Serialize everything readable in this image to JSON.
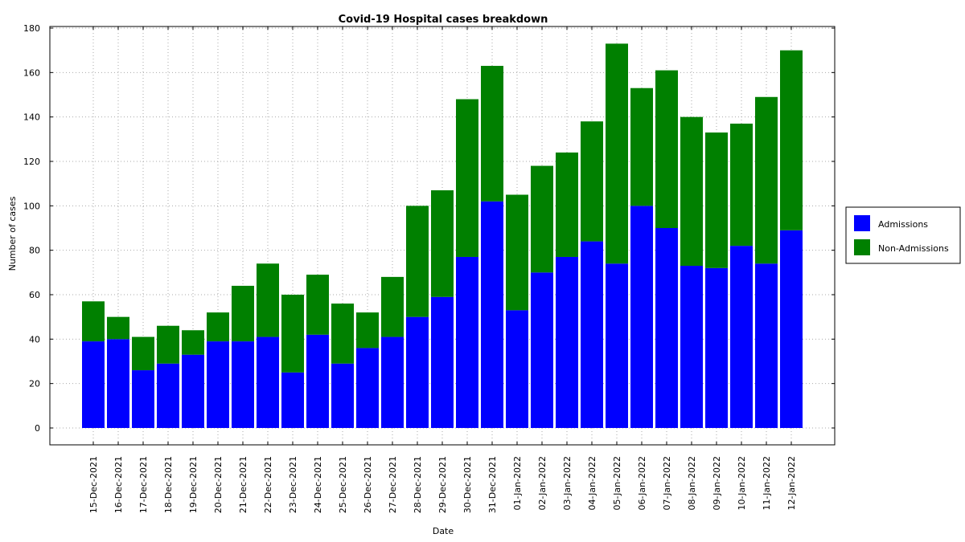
{
  "chart_data": {
    "type": "bar",
    "stacked": true,
    "title": "Covid-19 Hospital cases breakdown",
    "xlabel": "Date",
    "ylabel": "Number of cases",
    "ylim": [
      0,
      180
    ],
    "yticks": [
      0,
      20,
      40,
      60,
      80,
      100,
      120,
      140,
      160,
      180
    ],
    "grid": true,
    "legend_position": "right",
    "categories": [
      "15-Dec-2021",
      "16-Dec-2021",
      "17-Dec-2021",
      "18-Dec-2021",
      "19-Dec-2021",
      "20-Dec-2021",
      "21-Dec-2021",
      "22-Dec-2021",
      "23-Dec-2021",
      "24-Dec-2021",
      "25-Dec-2021",
      "26-Dec-2021",
      "27-Dec-2021",
      "28-Dec-2021",
      "29-Dec-2021",
      "30-Dec-2021",
      "31-Dec-2021",
      "01-Jan-2022",
      "02-Jan-2022",
      "03-Jan-2022",
      "04-Jan-2022",
      "05-Jan-2022",
      "06-Jan-2022",
      "07-Jan-2022",
      "08-Jan-2022",
      "09-Jan-2022",
      "10-Jan-2022",
      "11-Jan-2022",
      "12-Jan-2022"
    ],
    "series": [
      {
        "name": "Admissions",
        "color": "#0000ff",
        "values": [
          39,
          40,
          26,
          29,
          33,
          39,
          39,
          41,
          25,
          42,
          29,
          36,
          41,
          50,
          59,
          77,
          102,
          53,
          70,
          77,
          84,
          74,
          100,
          90,
          73,
          72,
          82,
          74,
          89
        ]
      },
      {
        "name": "Non-Admissions",
        "color": "#008000",
        "values": [
          18,
          10,
          15,
          17,
          11,
          13,
          25,
          33,
          35,
          27,
          27,
          16,
          27,
          50,
          48,
          71,
          61,
          52,
          48,
          47,
          54,
          99,
          53,
          71,
          67,
          61,
          55,
          75,
          81
        ]
      }
    ]
  }
}
